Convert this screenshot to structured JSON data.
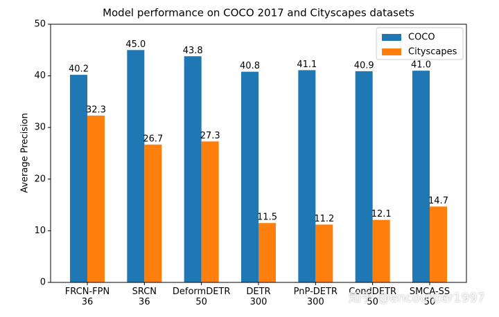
{
  "chart_data": {
    "type": "grouped-bar",
    "title": "Model performance on COCO 2017 and Cityscapes datasets",
    "y_label": "Average Precision",
    "categories": [
      "FRCN-FPN\n36",
      "SRCN\n36",
      "DeformDETR\n50",
      "DETR\n300",
      "PnP-DETR\n300",
      "CondDETR\n50",
      "SMCA-SS\n50"
    ],
    "series": [
      {
        "name": "COCO",
        "color": "#1f77b4",
        "values": [
          40.2,
          45.0,
          43.8,
          40.8,
          41.1,
          40.9,
          41.0
        ],
        "value_labels": [
          "40.2",
          "45.0",
          "43.8",
          "40.8",
          "41.1",
          "40.9",
          "41.0"
        ]
      },
      {
        "name": "Cityscapes",
        "color": "#ff7f0e",
        "values": [
          32.3,
          26.7,
          27.3,
          11.5,
          11.2,
          12.1,
          14.7
        ]
      }
    ],
    "ylim": [
      0,
      50
    ],
    "yticks": [
      0,
      10,
      20,
      30,
      40,
      50
    ],
    "legend": "upper right",
    "watermark": "知乎 @encounter1997"
  }
}
